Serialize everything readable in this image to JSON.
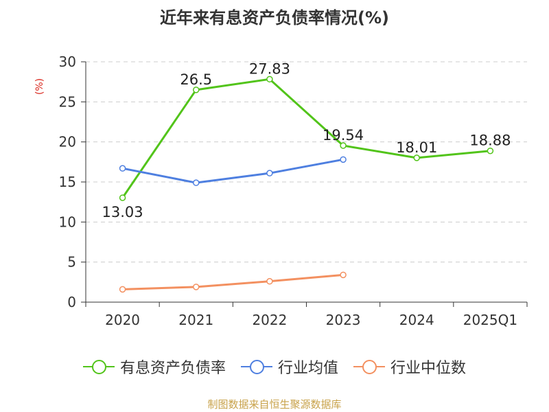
{
  "title": "近年来有息资产负债率情况(%)",
  "unit_label": "(%)",
  "source": "制图数据来自恒生聚源数据库",
  "colors": {
    "source_text": "#c8a24a",
    "unit_text": "#d9261c",
    "grid": "#cccccc",
    "axis": "#333333"
  },
  "chart_data": {
    "type": "line",
    "categories": [
      "2020",
      "2021",
      "2022",
      "2023",
      "2024",
      "2025Q1"
    ],
    "ylim": [
      0,
      30
    ],
    "yticks": [
      0,
      5,
      10,
      15,
      20,
      25,
      30
    ],
    "grid": "horizontal dashed",
    "legend": "bottom-center",
    "series": [
      {
        "name": "有息资产负债率",
        "color": "#52c41a",
        "values": [
          13.03,
          26.5,
          27.83,
          19.54,
          18.01,
          18.88
        ],
        "labels": [
          "13.03",
          "26.5",
          "27.83",
          "19.54",
          "18.01",
          "18.88"
        ]
      },
      {
        "name": "行业均值",
        "color": "#4e7fe0",
        "values": [
          16.7,
          14.9,
          16.1,
          17.8,
          null,
          null
        ]
      },
      {
        "name": "行业中位数",
        "color": "#f39060",
        "values": [
          1.6,
          1.9,
          2.6,
          3.4,
          null,
          null
        ]
      }
    ]
  }
}
